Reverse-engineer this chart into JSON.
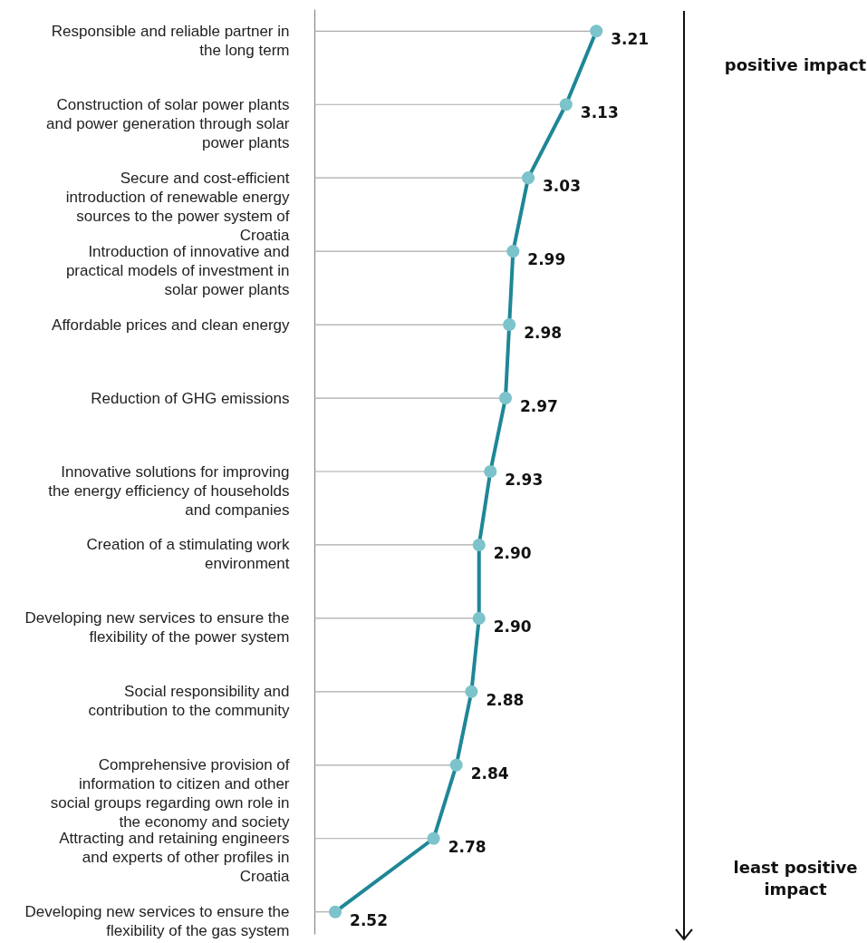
{
  "chart_data": {
    "type": "line",
    "orientation": "horizontal",
    "marker": "circle",
    "categories": [
      "Responsible and reliable partner in the long term",
      "Construction of solar power plants and power generation through solar power plants",
      "Secure and cost-efficient introduction of renewable energy sources to the power system of Croatia",
      "Introduction of innovative and practical models of investment in solar power plants",
      "Affordable prices and clean energy",
      "Reduction of GHG emissions",
      "Innovative solutions for improving the energy efficiency of households and companies",
      "Creation of a stimulating work environment",
      "Developing new services to ensure the flexibility of the power system",
      "Social responsibility and contribution to the community",
      "Comprehensive provision of information to citizen and other social groups regarding own role in the economy and society",
      "Attracting and retaining engineers and experts of other profiles in Croatia",
      "Developing new services to ensure the flexibility of the gas system"
    ],
    "series": [
      {
        "color": "#1e8796",
        "values": [
          3.21,
          3.13,
          3.03,
          2.99,
          2.98,
          2.97,
          2.93,
          2.9,
          2.9,
          2.88,
          2.84,
          2.78,
          2.52
        ],
        "value_labels": [
          "3.21",
          "3.13",
          "3.03",
          "2.99",
          "2.98",
          "2.97",
          "2.93",
          "2.90",
          "2.90",
          "2.88",
          "2.84",
          "2.78",
          "2.52"
        ]
      }
    ],
    "annotations": [
      "positive impact",
      "least positive impact"
    ]
  }
}
